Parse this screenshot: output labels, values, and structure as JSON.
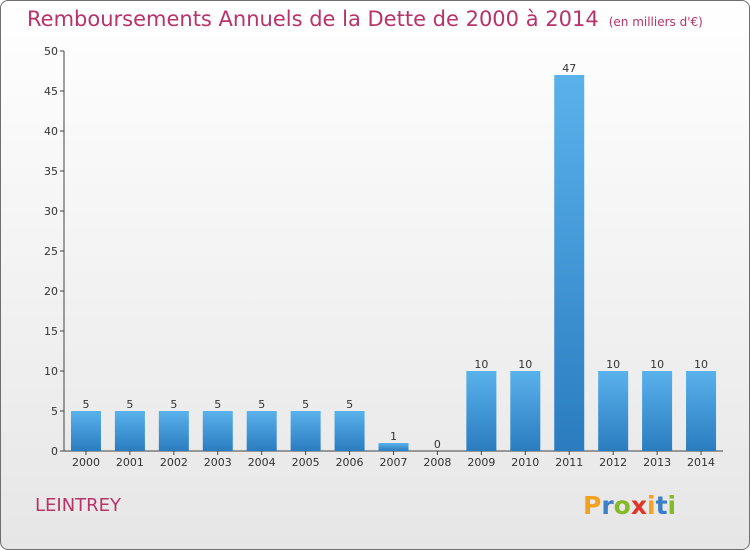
{
  "chart_data": {
    "type": "bar",
    "title": "Remboursements Annuels de la Dette de 2000 à 2014",
    "unit": "(en milliers d'€)",
    "categories": [
      "2000",
      "2001",
      "2002",
      "2003",
      "2004",
      "2005",
      "2006",
      "2007",
      "2008",
      "2009",
      "2010",
      "2011",
      "2012",
      "2013",
      "2014"
    ],
    "values": [
      5,
      5,
      5,
      5,
      5,
      5,
      5,
      1,
      0,
      10,
      10,
      47,
      10,
      10,
      10
    ],
    "ylim": [
      0,
      50
    ],
    "yticks": [
      0,
      5,
      10,
      15,
      20,
      25,
      30,
      35,
      40,
      45,
      50
    ],
    "grid": false,
    "bar_color": "#3a93d4"
  },
  "town": "LEINTREY",
  "logo": {
    "letters": [
      "P",
      "r",
      "o",
      "x",
      "i",
      "t",
      "i"
    ],
    "colors": [
      "#f2a120",
      "#3a7fc8",
      "#86b927",
      "#e2352a",
      "#f2a120",
      "#3a7fc8",
      "#86b927"
    ]
  }
}
